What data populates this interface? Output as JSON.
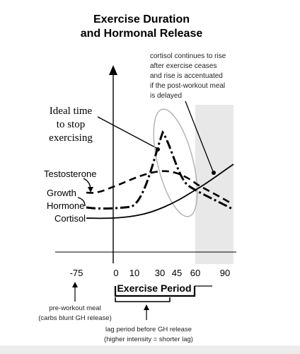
{
  "title_line1": "Exercise Duration",
  "title_line2": "and Hormonal Release",
  "cortisol_note": [
    "cortisol continues to rise",
    "after exercise ceases",
    "and rise is accentuated",
    "if the post-workout meal",
    "is delayed"
  ],
  "ideal_stop": [
    "Ideal time",
    "to stop",
    "exercising"
  ],
  "curves": {
    "testosterone": "Testosterone",
    "growth_hormone": [
      "Growth",
      "Hormone"
    ],
    "cortisol": "Cortisol"
  },
  "x_ticks": [
    "-75",
    "0",
    "10",
    "30",
    "45",
    "60",
    "90"
  ],
  "exercise_period": "Exercise Period",
  "preworkout": [
    "pre-workout meal",
    "(carbs blunt GH release)"
  ],
  "lag": [
    "lag period before GH release",
    "(higher intensity = shorter lag)"
  ],
  "colors": {
    "post_workout_shade": "#e8e8e8",
    "ellipse": "#b0b0b0",
    "bottom_bar": "#ececec"
  },
  "line_styles": {
    "testosterone": "long-dash",
    "growth_hormone": "dash-dot",
    "cortisol": "solid"
  }
}
